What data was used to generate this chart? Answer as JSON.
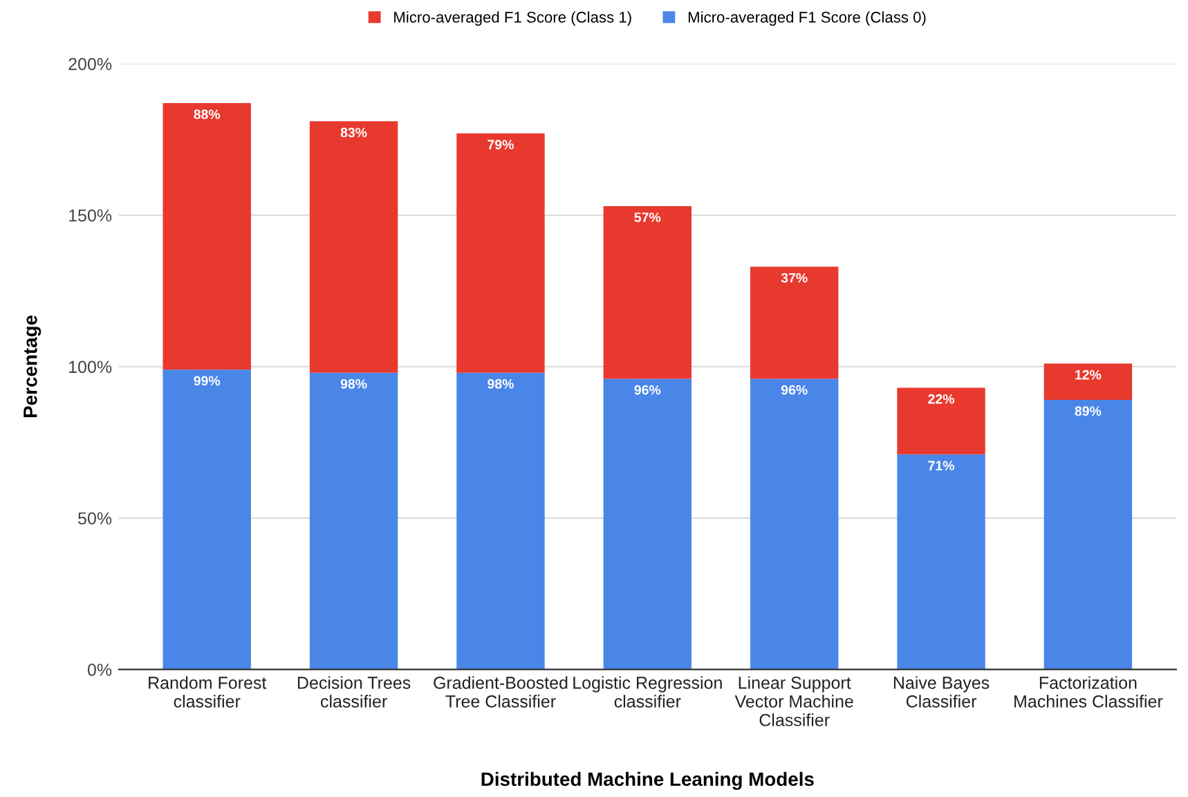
{
  "chart_data": {
    "type": "bar",
    "stacked": true,
    "xlabel": "Distributed Machine Leaning Models",
    "ylabel": "Percentage",
    "categories": [
      "Random Forest\nclassifier",
      "Decision Trees\nclassifier",
      "Gradient-Boosted\nTree Classifier",
      "Logistic Regression\nclassifier",
      "Linear Support\nVector Machine\nClassifier",
      "Naive Bayes\nClassifier",
      "Factorization\nMachines Classifier"
    ],
    "series": [
      {
        "name": "Micro-averaged F1 Score (Class 0)",
        "color": "#4a86e8",
        "values": [
          99,
          98,
          98,
          96,
          96,
          71,
          89
        ],
        "value_labels": [
          "99%",
          "98%",
          "98%",
          "96%",
          "96%",
          "71%",
          "89%"
        ]
      },
      {
        "name": "Micro-averaged F1 Score (Class 1)",
        "color": "#e8392f",
        "values": [
          88,
          83,
          79,
          57,
          37,
          22,
          12
        ],
        "value_labels": [
          "88%",
          "83%",
          "79%",
          "57%",
          "37%",
          "22%",
          "12%"
        ]
      }
    ],
    "ylim": [
      0,
      200
    ],
    "yticks": [
      {
        "value": 0,
        "label": "0%"
      },
      {
        "value": 50,
        "label": "50%"
      },
      {
        "value": 100,
        "label": "100%"
      },
      {
        "value": 150,
        "label": "150%"
      },
      {
        "value": 200,
        "label": "200%"
      }
    ],
    "grid": "y",
    "legend": "top"
  }
}
